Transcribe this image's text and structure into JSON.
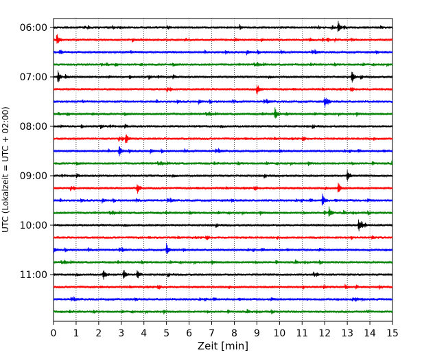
{
  "chart_data": {
    "type": "line",
    "title": "",
    "xlabel": "Zeit  [min]",
    "ylabel": "UTC (Lokalzeit = UTC + 02:00)",
    "xlim": [
      0,
      15
    ],
    "x_ticks": [
      "0",
      "1",
      "2",
      "3",
      "4",
      "5",
      "6",
      "7",
      "8",
      "9",
      "10",
      "11",
      "12",
      "13",
      "14",
      "15"
    ],
    "y_tick_labels": [
      "06:00",
      "07:00",
      "08:00",
      "09:00",
      "10:00",
      "11:00"
    ],
    "grid": "vertical-dotted",
    "color_cycle": [
      "#000000",
      "#ff0000",
      "#0000ff",
      "#008000"
    ],
    "trace_start_times": [
      "06:00",
      "06:15",
      "06:30",
      "06:45",
      "07:00",
      "07:15",
      "07:30",
      "07:45",
      "08:00",
      "08:15",
      "08:30",
      "08:45",
      "09:00",
      "09:15",
      "09:30",
      "09:45",
      "10:00",
      "10:15",
      "10:30",
      "10:45",
      "11:00",
      "11:15",
      "11:30",
      "11:45"
    ],
    "events_minutes": [
      [
        12.6
      ],
      [
        0.15
      ],
      [],
      [],
      [
        0.2,
        13.2
      ],
      [
        9.0
      ],
      [
        12.0
      ],
      [
        9.8
      ],
      [],
      [
        3.2
      ],
      [
        2.9
      ],
      [],
      [
        13.0
      ],
      [
        3.7,
        12.6
      ],
      [
        11.9
      ],
      [
        12.2
      ],
      [
        13.5
      ],
      [],
      [
        5.0
      ],
      [],
      [
        2.2,
        3.1,
        3.7
      ],
      [],
      [],
      []
    ]
  }
}
